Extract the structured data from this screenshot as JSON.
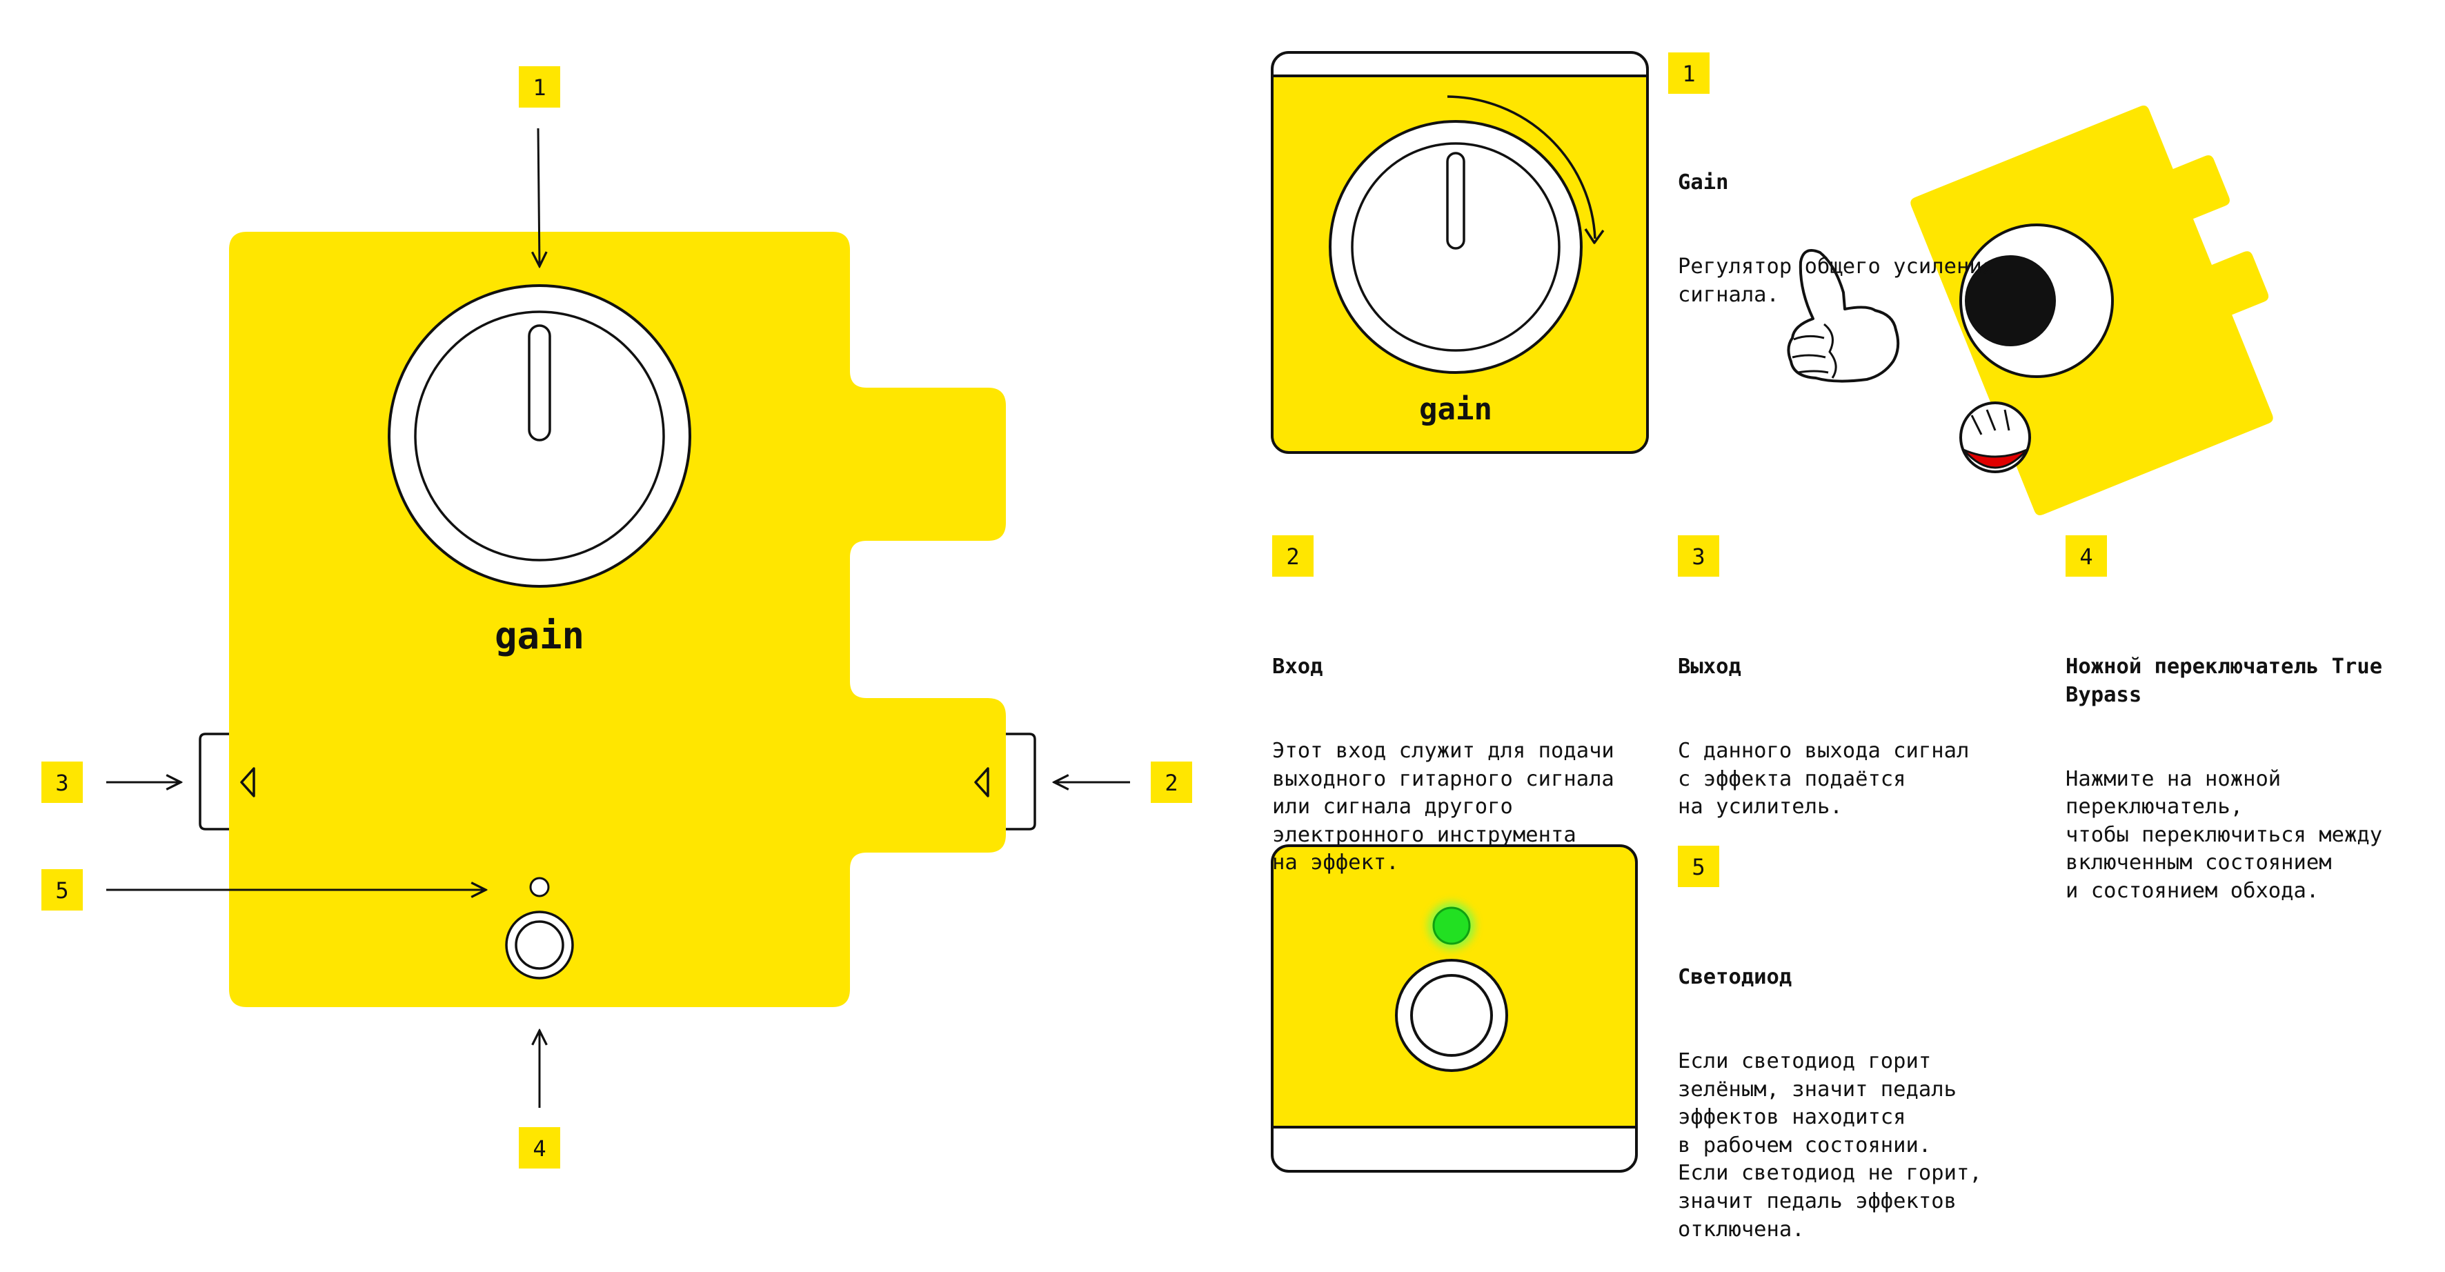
{
  "colors": {
    "accent_yellow": "#FFE600",
    "ink": "#111111",
    "led_green": "#22E022",
    "mouth_red": "#E00000"
  },
  "pedal": {
    "knob_label": "gain"
  },
  "detail_knob": {
    "label": "gain"
  },
  "badges": [
    "1",
    "2",
    "3",
    "4",
    "5"
  ],
  "callouts": [
    {
      "num": "1",
      "title": "Gain",
      "text": "Регулятор общего усиления\nсигнала."
    },
    {
      "num": "2",
      "title": "Вход",
      "text": "Этот вход служит для подачи\nвыходного гитарного сигнала\nили сигнала другого\nэлектронного инструмента\nна эффект."
    },
    {
      "num": "3",
      "title": "Выход",
      "text": "С данного выхода сигнал\nс эффекта подаётся\nна усилитель."
    },
    {
      "num": "4",
      "title": "Ножной переключатель True\nBypass",
      "text": "Нажмите на ножной\nпереключатель,\nчтобы переключиться между\nвключенным состоянием\nи состоянием обхода."
    },
    {
      "num": "5",
      "title": "Светодиод",
      "text": "Если светодиод горит\nзелёным, значит педаль\nэффектов находится\nв рабочем состоянии.\nЕсли светодиод не горит,\nзначит педаль эффектов\nотключена."
    }
  ]
}
